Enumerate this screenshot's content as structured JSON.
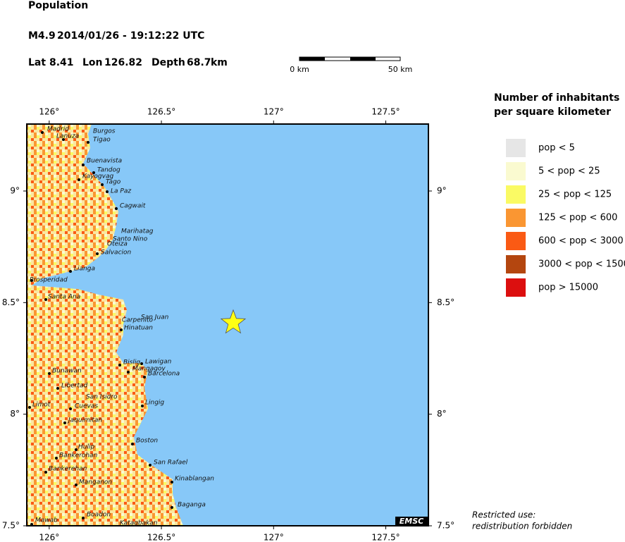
{
  "header": {
    "title": "Population",
    "magnitude": "M4.9",
    "datetime": "2014/01/26 - 19:12:22 UTC",
    "lat_label": "Lat",
    "lat": 8.41,
    "lon_label": "Lon",
    "lon": 126.82,
    "depth_label": "Depth",
    "depth": 68.7,
    "depth_unit": "km"
  },
  "scale_bar": {
    "start": "0 km",
    "end": "50 km"
  },
  "map": {
    "xlim": [
      125.9,
      127.69
    ],
    "ylim": [
      7.5,
      9.3
    ],
    "xticks": [
      {
        "value": 126,
        "label": "126°"
      },
      {
        "value": 126.5,
        "label": "126.5°"
      },
      {
        "value": 127,
        "label": "127°"
      },
      {
        "value": 127.5,
        "label": "127.5°"
      }
    ],
    "yticks": [
      {
        "value": 9,
        "label": "9°"
      },
      {
        "value": 8.5,
        "label": "8.5°"
      },
      {
        "value": 8,
        "label": "8°"
      },
      {
        "value": 7.5,
        "label": "7.5°"
      }
    ],
    "places": [
      "Madrid",
      "Lanuza",
      "Burgos",
      "Tigao",
      "Buenavista",
      "Tandog",
      "Kayogvag",
      "Tago",
      "La Paz",
      "Cagwait",
      "Marihatag",
      "Santo Nino",
      "Oteiza",
      "Salvacion",
      "Lianga",
      "Prosperidad",
      "Santa Ana",
      "San Juan",
      "Carpenito",
      "Hinatuan",
      "Bislig",
      "Lawigan",
      "Mangagoy",
      "Barcelona",
      "Bunawan",
      "Libertad",
      "San Isidro",
      "Cuevas",
      "Limot",
      "Lingig",
      "Jaquimitan",
      "Boston",
      "Hulip",
      "Bankerohan",
      "San Rafael",
      "Bankerehan",
      "Kinablangan",
      "Manganon",
      "Baganga",
      "Boadon",
      "Mawab",
      "Katagbakan"
    ],
    "logo": "EMSC"
  },
  "legend": {
    "title": [
      "Number of inhabitants",
      "per square kilometer"
    ],
    "items": [
      {
        "label": "pop < 5",
        "color": "#e6e6e6"
      },
      {
        "label": "5 < pop < 25",
        "color": "#fafad0"
      },
      {
        "label": "25 < pop < 125",
        "color": "#fafa64"
      },
      {
        "label": "125 < pop < 600",
        "color": "#fa9632"
      },
      {
        "label": "600 < pop < 3000",
        "color": "#fa5a14"
      },
      {
        "label": "3000 < pop < 15000",
        "color": "#b4460f"
      },
      {
        "label": "pop > 15000",
        "color": "#dc0f0f"
      }
    ]
  },
  "notice": [
    "Restricted use:",
    "redistribution forbidden"
  ]
}
